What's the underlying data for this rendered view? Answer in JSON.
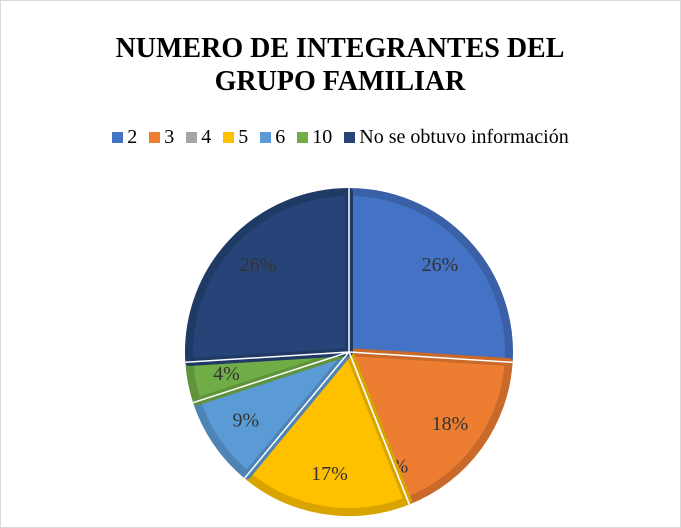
{
  "chart_data": {
    "type": "pie",
    "title": "NUMERO DE INTEGRANTES DEL GRUPO FAMILIAR",
    "categories": [
      "2",
      "3",
      "4",
      "5",
      "6",
      "10",
      "No se obtuvo información"
    ],
    "values": [
      26,
      18,
      0,
      17,
      9,
      4,
      26
    ],
    "value_labels": [
      "26%",
      "18%",
      "0%",
      "17%",
      "9%",
      "4%",
      "26%"
    ],
    "colors": [
      "#4472c4",
      "#ed7d31",
      "#a5a5a5",
      "#ffc000",
      "#5b9bd5",
      "#70ad47",
      "#264478"
    ],
    "legend": "top"
  }
}
